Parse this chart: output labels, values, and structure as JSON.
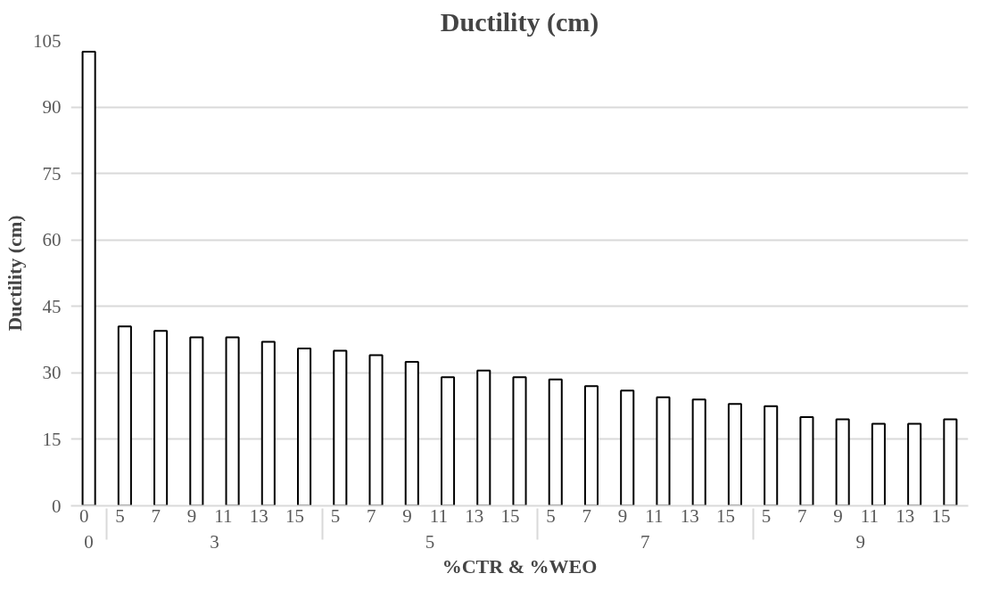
{
  "chart_data": {
    "type": "bar",
    "title": "Ductility (cm)",
    "xlabel": "%CTR & %WEO",
    "ylabel": "Ductility (cm)",
    "categories": [
      "0",
      "5",
      "7",
      "9",
      "11",
      "13",
      "15",
      "5",
      "7",
      "9",
      "11",
      "13",
      "15",
      "5",
      "7",
      "9",
      "11",
      "13",
      "15",
      "5",
      "7",
      "9",
      "11",
      "13",
      "15"
    ],
    "annotations": [
      "0",
      "3",
      "5",
      "7",
      "9"
    ],
    "series": [
      {
        "color": "#ffffff",
        "values": [
          102.5,
          40.5,
          39.5,
          38,
          38,
          37,
          35.5,
          35,
          34,
          32.5,
          29,
          30.5,
          29,
          28.5,
          27,
          26,
          24.5,
          24,
          23,
          22.5,
          20,
          19.5,
          18.5,
          18.5,
          19.5
        ]
      }
    ],
    "ylim": [
      0,
      105
    ],
    "yticks": [
      0,
      15,
      30,
      45,
      60,
      75,
      90,
      105
    ],
    "grid": "y"
  }
}
